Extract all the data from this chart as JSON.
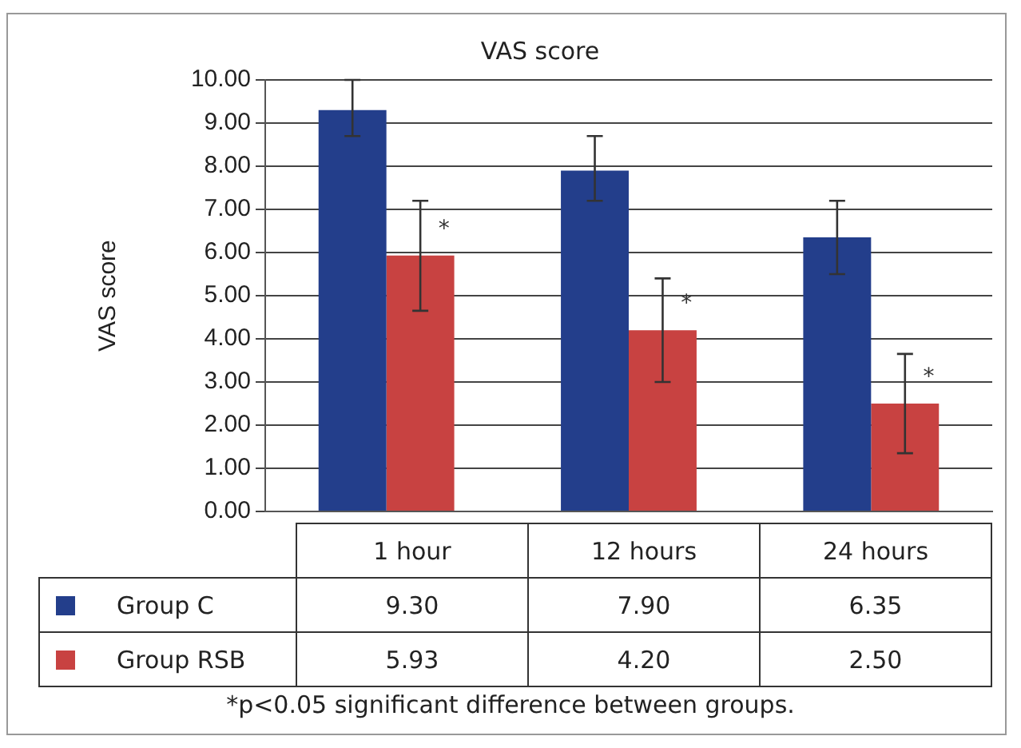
{
  "chart_data": {
    "type": "bar",
    "title": "VAS score",
    "ylabel": "VAS score",
    "categories": [
      "1 hour",
      "12 hours",
      "24 hours"
    ],
    "series": [
      {
        "name": "Group C",
        "color": "#233e8b",
        "values": [
          9.3,
          7.9,
          6.35
        ],
        "value_labels": [
          "9.30",
          "7.90",
          "6.35"
        ],
        "errors": [
          [
            8.7,
            10.0
          ],
          [
            7.2,
            8.7
          ],
          [
            5.5,
            7.2
          ]
        ]
      },
      {
        "name": "Group RSB",
        "color": "#c84241",
        "values": [
          5.93,
          4.2,
          2.5
        ],
        "value_labels": [
          "5.93",
          "4.20",
          "2.50"
        ],
        "errors": [
          [
            4.65,
            7.2
          ],
          [
            3.0,
            5.4
          ],
          [
            1.35,
            3.65
          ]
        ]
      }
    ],
    "ylim": [
      0,
      10
    ],
    "yticks": [
      {
        "value": 0,
        "label": "0.00"
      },
      {
        "value": 1,
        "label": "1.00"
      },
      {
        "value": 2,
        "label": "2.00"
      },
      {
        "value": 3,
        "label": "3.00"
      },
      {
        "value": 4,
        "label": "4.00"
      },
      {
        "value": 5,
        "label": "5.00"
      },
      {
        "value": 6,
        "label": "6.00"
      },
      {
        "value": 7,
        "label": "7.00"
      },
      {
        "value": 8,
        "label": "8.00"
      },
      {
        "value": 9,
        "label": "9.00"
      },
      {
        "value": 10,
        "label": "10.00"
      }
    ],
    "grid": "y",
    "legend": "bottom",
    "annotations": [
      {
        "text": "*",
        "x": "1 hour",
        "y": 5.93
      },
      {
        "text": "*",
        "x": "12 hours",
        "y": 4.2
      },
      {
        "text": "*",
        "x": "24 hours",
        "y": 2.5
      },
      "*p<0.05 significant difference between groups."
    ]
  }
}
